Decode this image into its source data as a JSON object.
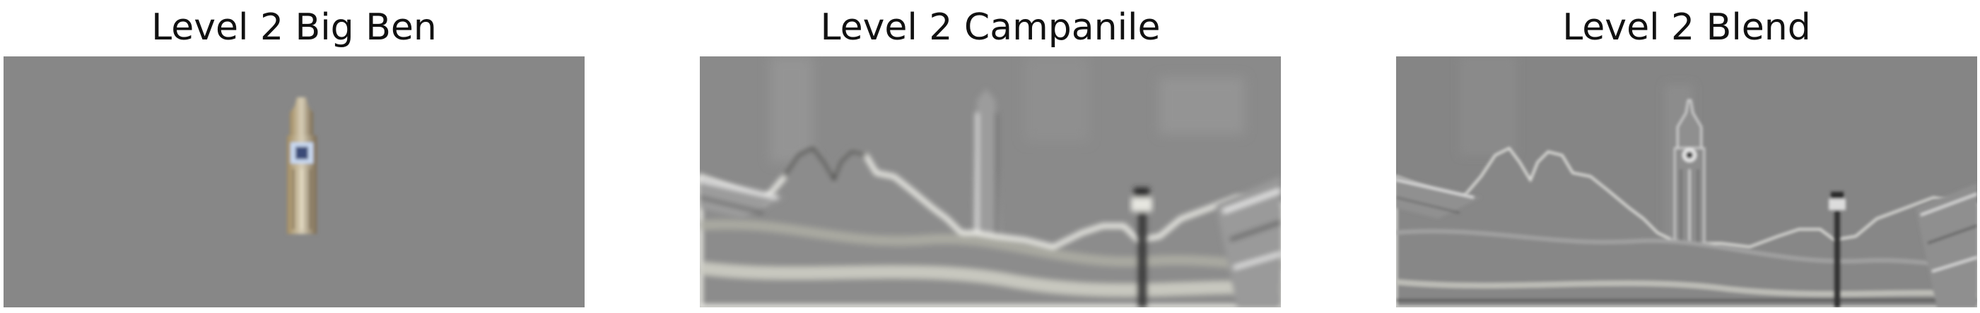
{
  "panels": [
    {
      "title": "Level 2 Big Ben"
    },
    {
      "title": "Level 2 Campanile"
    },
    {
      "title": "Level 2 Blend"
    }
  ],
  "colors": {
    "background_gray": "#878787",
    "campanile_gray": "#8a8a8a",
    "blend_gray": "#858585"
  }
}
